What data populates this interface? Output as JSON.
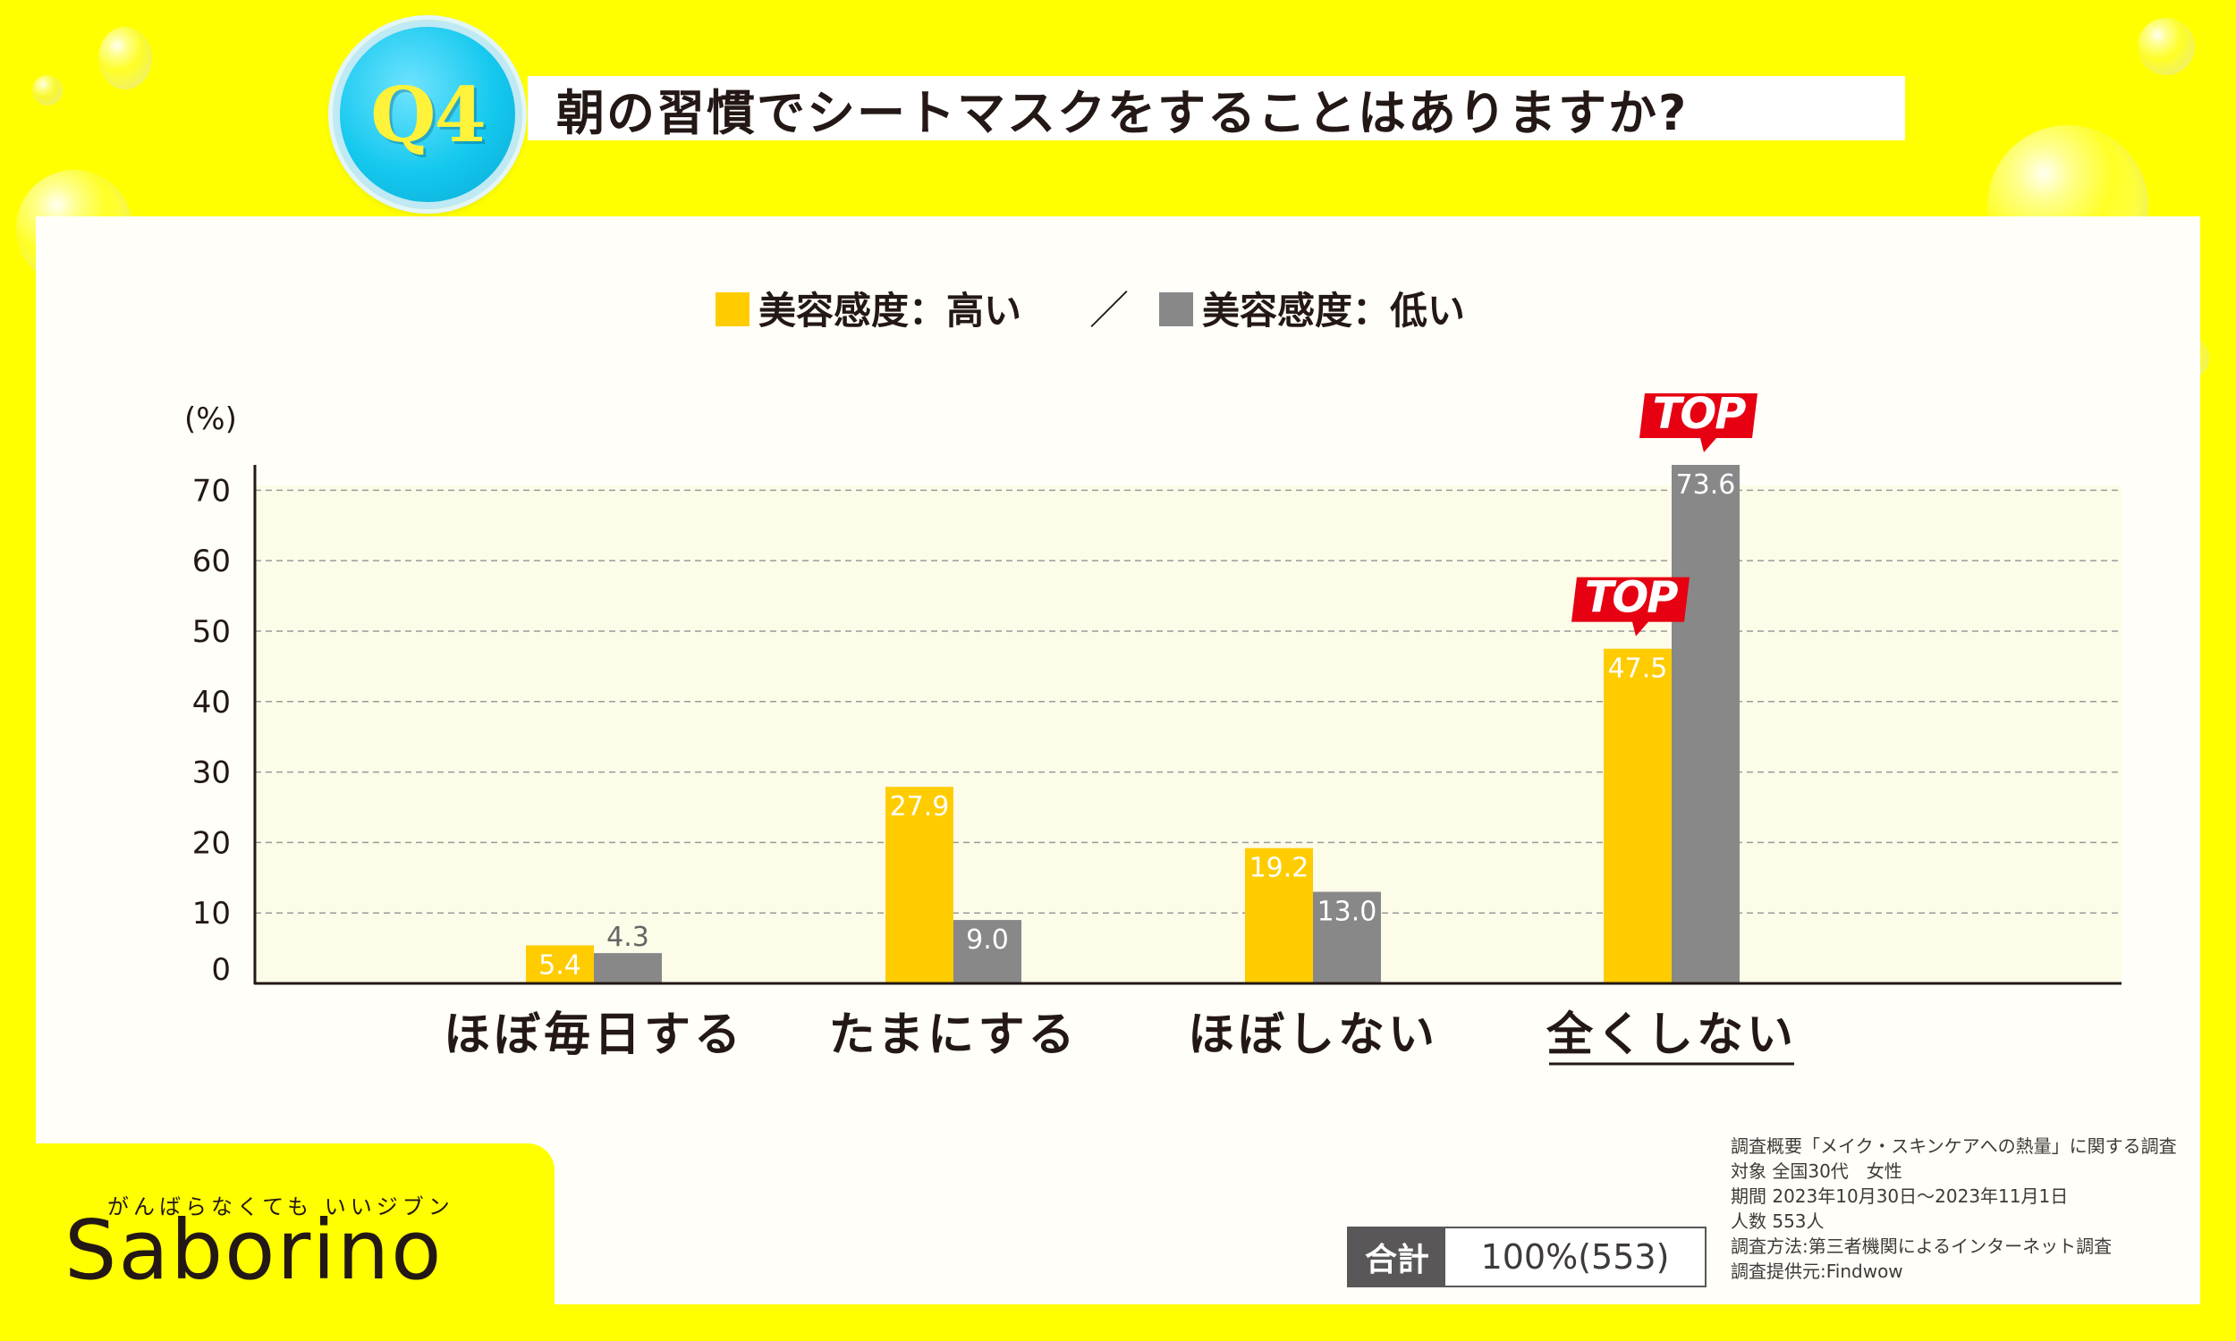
{
  "question_badge": "Q4",
  "title": "朝の習慣でシートマスクをすることはありますか?",
  "legend": {
    "high_label": "美容感度：高い",
    "separator": "／",
    "low_label": "美容感度：低い"
  },
  "colors": {
    "high": "#FFCC00",
    "low": "#888888",
    "top_flag": "#E60012",
    "background": "#FFFF00"
  },
  "chart_data": {
    "type": "bar",
    "unit_label": "(%)",
    "categories": [
      "ほぼ毎日する",
      "たまにする",
      "ほぼしない",
      "全くしない"
    ],
    "series": [
      {
        "name": "美容感度：高い",
        "values": [
          5.4,
          27.9,
          19.2,
          47.5
        ],
        "labels": [
          "5.4",
          "27.9",
          "19.2",
          "47.5"
        ]
      },
      {
        "name": "美容感度：低い",
        "values": [
          4.3,
          9.0,
          13.0,
          73.6
        ],
        "labels": [
          "4.3",
          "9.0",
          "13.0",
          "73.6"
        ]
      }
    ],
    "ylim": [
      0,
      73.6
    ],
    "yticks": [
      0,
      10,
      20,
      30,
      40,
      50,
      60,
      70
    ],
    "grid": true,
    "highlight_category": "全くしない",
    "top_badge_text": "TOP"
  },
  "total": {
    "label": "合計",
    "value": "100%(553)"
  },
  "survey_info": [
    "調査概要「メイク・スキンケアへの熱量」に関する調査",
    "対象 全国30代　女性",
    "期間 2023年10月30日～2023年11月1日",
    "人数 553人",
    "調査方法:第三者機関によるインターネット調査",
    "調査提供元:Findwow"
  ],
  "brand": {
    "tagline": "がんばらなくても いいジブン",
    "name": "Saborino"
  }
}
